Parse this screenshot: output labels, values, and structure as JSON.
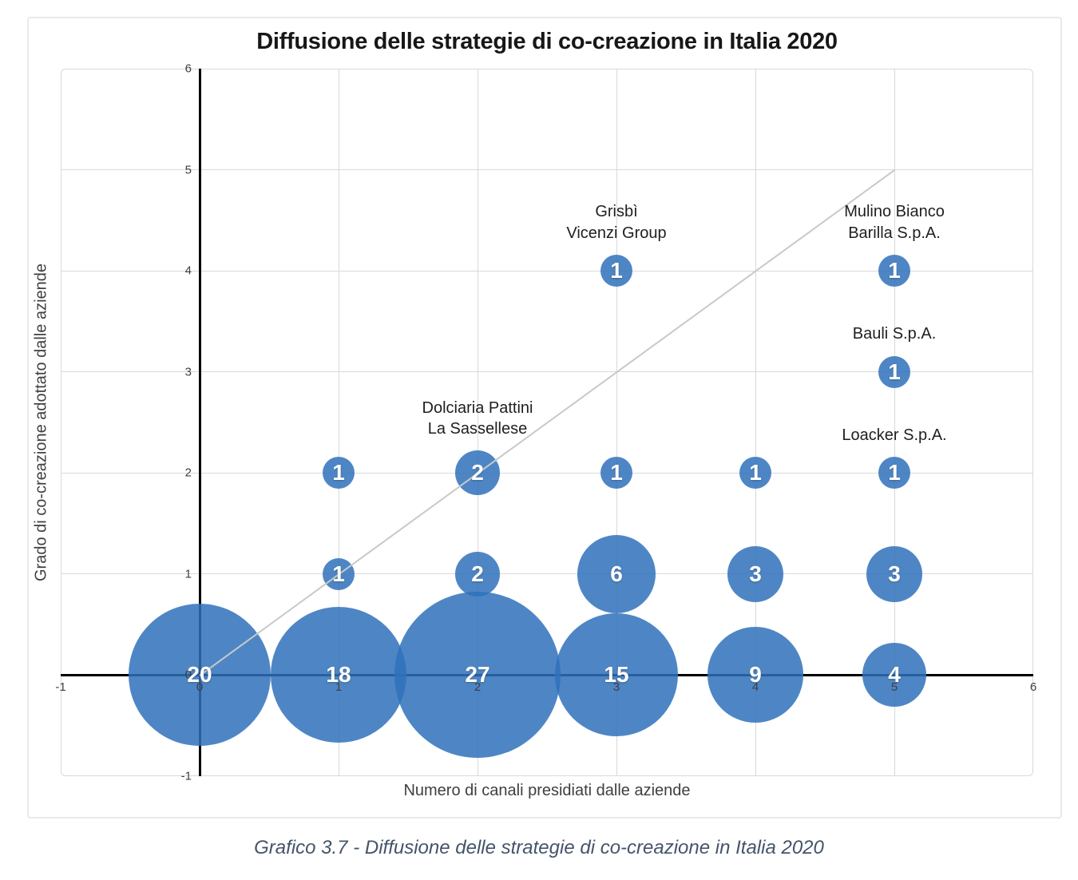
{
  "caption": "Grafico 3.7 - Diffusione delle strategie di co-creazione in Italia 2020",
  "colors": {
    "bubble_fill": "rgba(47,113,187,0.85)",
    "bubble_solid": "#4e86c5",
    "grid": "#d9d9d9",
    "axis": "#000000",
    "diagonal_line": "#c9c9c9",
    "tick_text": "#3f3f3f",
    "title_text": "#171717",
    "annotation_text": "#1f1f1f",
    "caption_text": "#44546a",
    "value_text": "#ffffff"
  },
  "chart_data": {
    "type": "scatter",
    "variant": "bubble",
    "title": "Diffusione delle strategie di co-creazione in Italia 2020",
    "xlabel": "Numero di canali presidiati dalle aziende",
    "ylabel": "Grado di co-creazione adottato dalle aziende",
    "xlim": [
      -1,
      6
    ],
    "ylim": [
      -1,
      6
    ],
    "xticks": [
      -1,
      0,
      1,
      2,
      3,
      4,
      5,
      6
    ],
    "yticks": [
      -1,
      0,
      1,
      2,
      3,
      4,
      5,
      6
    ],
    "grid": true,
    "legend": false,
    "bubble_value_meaning": "number of companies, shown as white label inside each bubble; bubble area proportional to value",
    "points": [
      {
        "x": 0,
        "y": 0,
        "value": 20
      },
      {
        "x": 1,
        "y": 0,
        "value": 18
      },
      {
        "x": 2,
        "y": 0,
        "value": 27
      },
      {
        "x": 3,
        "y": 0,
        "value": 15
      },
      {
        "x": 4,
        "y": 0,
        "value": 9
      },
      {
        "x": 5,
        "y": 0,
        "value": 4
      },
      {
        "x": 1,
        "y": 1,
        "value": 1
      },
      {
        "x": 2,
        "y": 1,
        "value": 2
      },
      {
        "x": 3,
        "y": 1,
        "value": 6
      },
      {
        "x": 4,
        "y": 1,
        "value": 3
      },
      {
        "x": 5,
        "y": 1,
        "value": 3
      },
      {
        "x": 1,
        "y": 2,
        "value": 1
      },
      {
        "x": 2,
        "y": 2,
        "value": 2
      },
      {
        "x": 3,
        "y": 2,
        "value": 1
      },
      {
        "x": 4,
        "y": 2,
        "value": 1
      },
      {
        "x": 5,
        "y": 2,
        "value": 1
      },
      {
        "x": 5,
        "y": 3,
        "value": 1
      },
      {
        "x": 3,
        "y": 4,
        "value": 1
      },
      {
        "x": 5,
        "y": 4,
        "value": 1
      }
    ],
    "annotations": [
      {
        "x": 2,
        "y": 2,
        "lines": [
          "Dolciaria Pattini",
          "La Sassellese"
        ]
      },
      {
        "x": 3,
        "y": 4,
        "lines": [
          "Grisbì",
          "Vicenzi Group"
        ]
      },
      {
        "x": 5,
        "y": 4,
        "lines": [
          "Mulino Bianco",
          "Barilla S.p.A."
        ]
      },
      {
        "x": 5,
        "y": 3,
        "lines": [
          "Bauli S.p.A."
        ]
      },
      {
        "x": 5,
        "y": 2,
        "lines": [
          "Loacker S.p.A."
        ]
      }
    ],
    "reference_line": {
      "type": "diagonal",
      "from": [
        0,
        0
      ],
      "to": [
        5,
        5
      ]
    }
  }
}
